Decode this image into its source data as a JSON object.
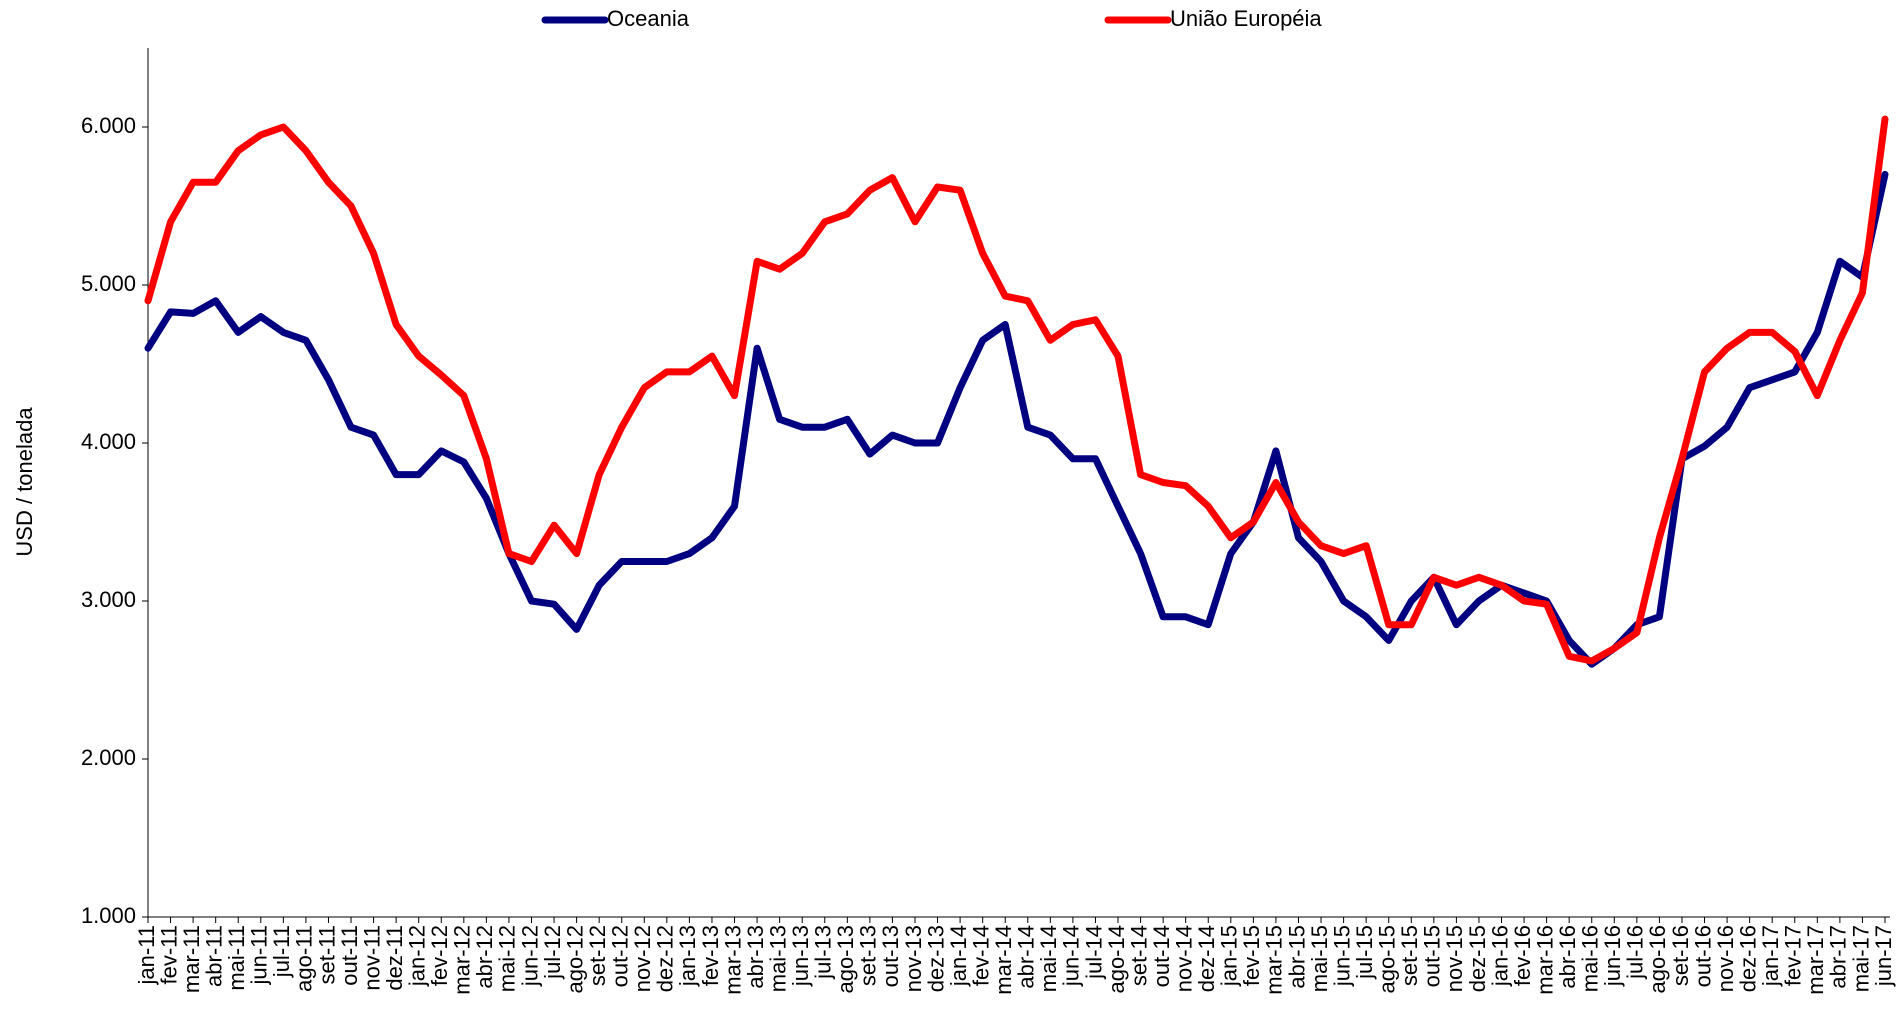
{
  "chart_data": {
    "type": "line",
    "ylabel": "USD / tonelada",
    "categories": [
      "jan-11",
      "fev-11",
      "mar-11",
      "abr-11",
      "mai-11",
      "jun-11",
      "jul-11",
      "ago-11",
      "set-11",
      "out-11",
      "nov-11",
      "dez-11",
      "jan-12",
      "fev-12",
      "mar-12",
      "abr-12",
      "mai-12",
      "jun-12",
      "jul-12",
      "ago-12",
      "set-12",
      "out-12",
      "nov-12",
      "dez-12",
      "jan-13",
      "fev-13",
      "mar-13",
      "abr-13",
      "mai-13",
      "jun-13",
      "jul-13",
      "ago-13",
      "set-13",
      "out-13",
      "nov-13",
      "dez-13",
      "jan-14",
      "fev-14",
      "mar-14",
      "abr-14",
      "mai-14",
      "jun-14",
      "jul-14",
      "ago-14",
      "set-14",
      "out-14",
      "nov-14",
      "dez-14",
      "jan-15",
      "fev-15",
      "mar-15",
      "abr-15",
      "mai-15",
      "jun-15",
      "jul-15",
      "ago-15",
      "set-15",
      "out-15",
      "nov-15",
      "dez-15",
      "jan-16",
      "fev-16",
      "mar-16",
      "abr-16",
      "mai-16",
      "jun-16",
      "jul-16",
      "ago-16",
      "set-16",
      "out-16",
      "nov-16",
      "dez-16",
      "jan-17",
      "fev-17",
      "mar-17",
      "abr-17",
      "mai-17",
      "jun-17"
    ],
    "series": [
      {
        "name": "Oceania",
        "color": "#000080",
        "values": [
          4600,
          4830,
          4820,
          4900,
          4700,
          4800,
          4700,
          4650,
          4400,
          4100,
          4050,
          3800,
          3800,
          3950,
          3880,
          3650,
          3300,
          3000,
          2980,
          2820,
          3100,
          3250,
          3250,
          3250,
          3300,
          3400,
          3600,
          4600,
          4150,
          4100,
          4100,
          4150,
          3930,
          4050,
          4000,
          4000,
          4350,
          4650,
          4750,
          4100,
          4050,
          3900,
          3900,
          3600,
          3300,
          2900,
          2900,
          2850,
          3300,
          3500,
          3950,
          3400,
          3250,
          3000,
          2900,
          2750,
          3000,
          3150,
          2850,
          3000,
          3100,
          3050,
          3000,
          2750,
          2600,
          2700,
          2850,
          2900,
          3900,
          3980,
          4100,
          4350,
          4400,
          4450,
          4700,
          5150,
          5050,
          5700
        ]
      },
      {
        "name": "União Européia",
        "color": "#ff0000",
        "values": [
          4900,
          5400,
          5650,
          5650,
          5850,
          5950,
          6000,
          5850,
          5650,
          5500,
          5200,
          4750,
          4550,
          4430,
          4300,
          3900,
          3300,
          3250,
          3480,
          3300,
          3800,
          4100,
          4350,
          4450,
          4450,
          4550,
          4300,
          5150,
          5100,
          5200,
          5400,
          5450,
          5600,
          5680,
          5400,
          5620,
          5600,
          5200,
          4930,
          4900,
          4650,
          4750,
          4780,
          4550,
          3800,
          3750,
          3730,
          3600,
          3400,
          3500,
          3750,
          3500,
          3350,
          3300,
          3350,
          2850,
          2850,
          3150,
          3100,
          3150,
          3100,
          3000,
          2980,
          2650,
          2620,
          2700,
          2800,
          3400,
          3900,
          4450,
          4600,
          4700,
          4700,
          4580,
          4300,
          4650,
          4950,
          6050
        ]
      }
    ],
    "ylim": [
      1000,
      6500
    ],
    "yticks": [
      {
        "value": 1000,
        "label": "1.000"
      },
      {
        "value": 2000,
        "label": "2.000"
      },
      {
        "value": 3000,
        "label": "3.000"
      },
      {
        "value": 4000,
        "label": "4.000"
      },
      {
        "value": 5000,
        "label": "5.000"
      },
      {
        "value": 6000,
        "label": "6.000"
      }
    ],
    "grid": false,
    "legend": "top"
  }
}
